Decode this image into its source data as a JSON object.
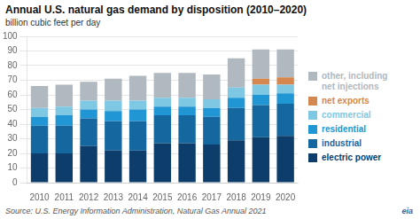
{
  "chart_data": {
    "type": "bar",
    "title": "Annual U.S. natural gas demand by disposition (2010–2020)",
    "subtitle": "billion cubic feet per day",
    "annotations": [
      "Source: U.S. Energy Information Administration, Natural Gas Annual 2021",
      "eia"
    ],
    "categories": [
      "2010",
      "2011",
      "2012",
      "2013",
      "2014",
      "2015",
      "2016",
      "2017",
      "2018",
      "2019",
      "2020"
    ],
    "series": [
      {
        "name": "electric power",
        "color": "#0d3d6b",
        "values": [
          20,
          20,
          25,
          22,
          22,
          27,
          27,
          26,
          29,
          31,
          32
        ]
      },
      {
        "name": "industrial",
        "color": "#1567a0",
        "values": [
          19,
          19,
          19,
          20,
          20,
          19,
          19,
          19,
          22,
          22,
          22
        ]
      },
      {
        "name": "residential",
        "color": "#2196d4",
        "values": [
          6,
          7,
          6,
          7,
          8,
          6,
          6,
          6,
          7,
          7,
          7
        ]
      },
      {
        "name": "commercial",
        "color": "#7ec8e3",
        "values": [
          6,
          6,
          6,
          7,
          6,
          6,
          6,
          6,
          7,
          7,
          6
        ]
      },
      {
        "name": "net exports",
        "color": "#d4874e",
        "values": [
          0,
          0,
          0,
          0,
          0,
          0,
          0,
          0,
          0,
          4,
          5
        ]
      },
      {
        "name": "other, including\nnet injections",
        "color": "#b0b8c0",
        "values": [
          15,
          15,
          13,
          15,
          17,
          17,
          17,
          17,
          20,
          20,
          19
        ]
      }
    ],
    "stacked": true,
    "ylim": [
      0,
      100
    ],
    "yticks": [
      0,
      10,
      20,
      30,
      40,
      50,
      60,
      70,
      80,
      90,
      100
    ],
    "grid": true,
    "legend": "right"
  }
}
